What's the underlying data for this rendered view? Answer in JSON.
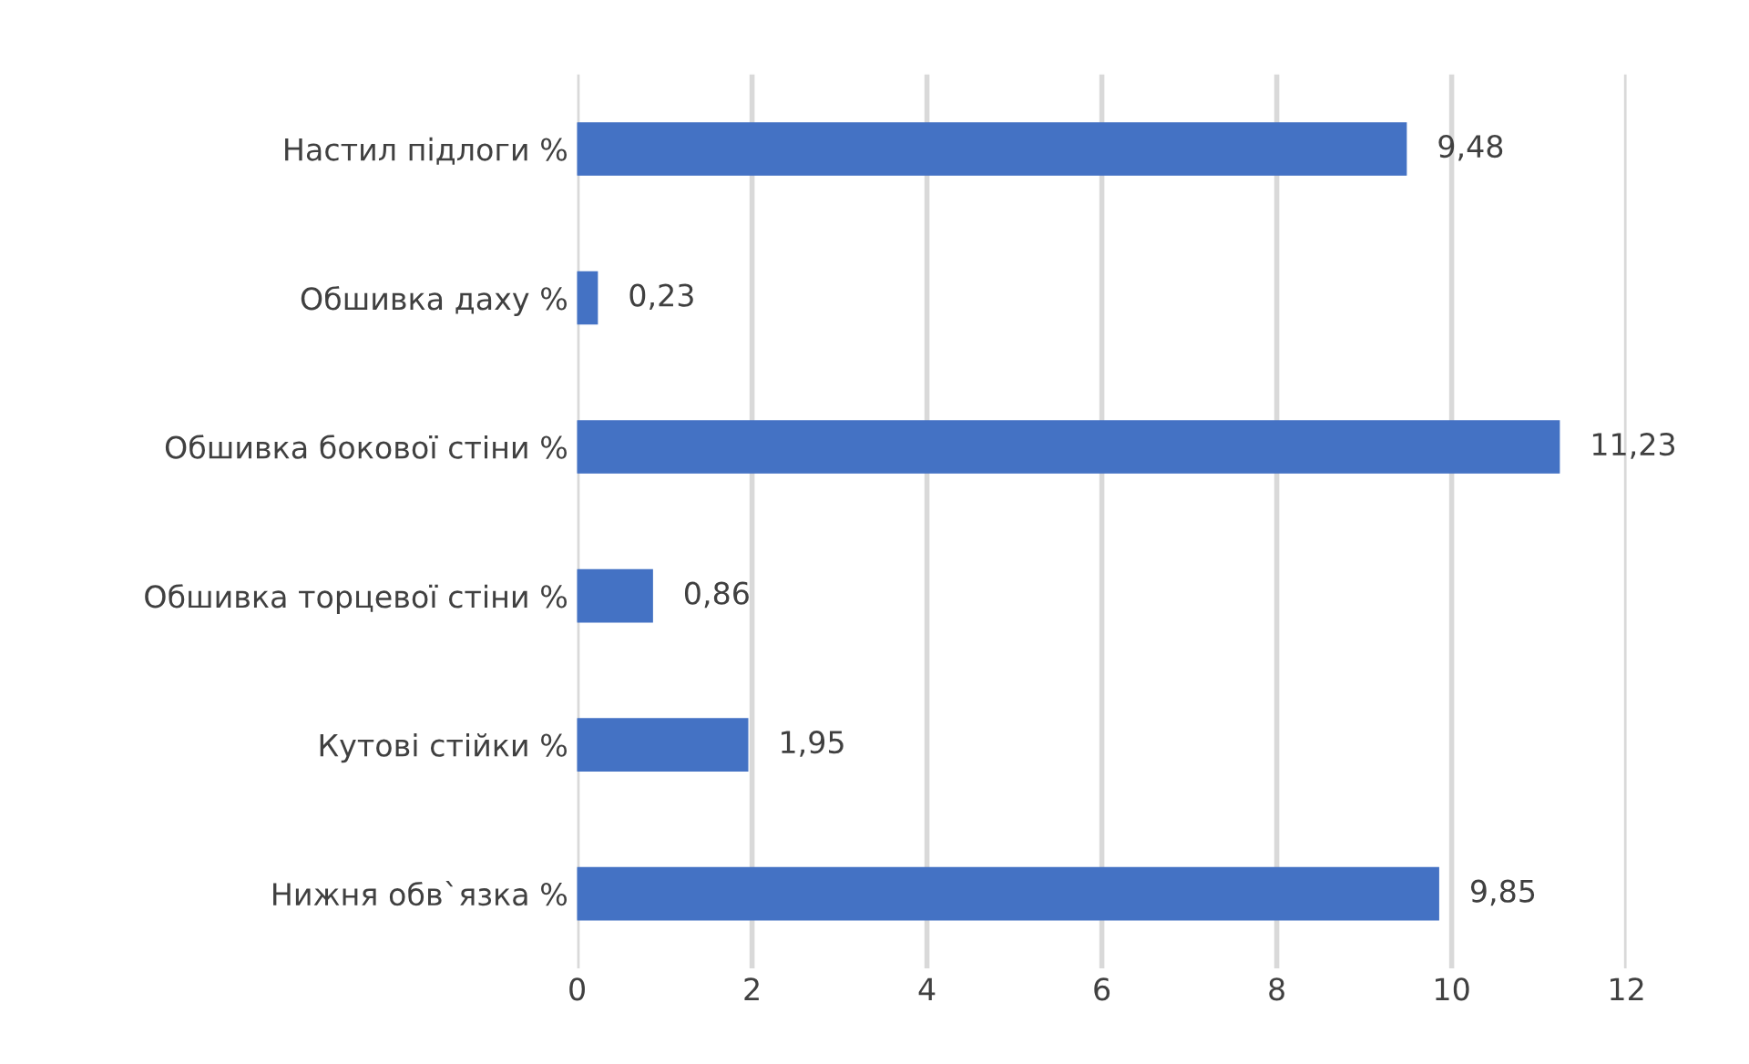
{
  "chart_data": {
    "type": "bar",
    "orientation": "horizontal",
    "categories": [
      "Настил підлоги %",
      "Обшивка даху %",
      "Обшивка бокової стіни %",
      "Обшивка торцевої стіни %",
      "Кутові стійки %",
      "Нижня обв`язка %"
    ],
    "values": [
      9.48,
      0.23,
      11.23,
      0.86,
      1.95,
      9.85
    ],
    "value_labels": [
      "9,48",
      "0,23",
      "11,23",
      "0,86",
      "1,95",
      "9,85"
    ],
    "color": "#4472c4",
    "xlim": [
      0,
      12
    ],
    "xticks": [
      0,
      2,
      4,
      6,
      8,
      10,
      12
    ],
    "grid": "x",
    "legend": false
  }
}
